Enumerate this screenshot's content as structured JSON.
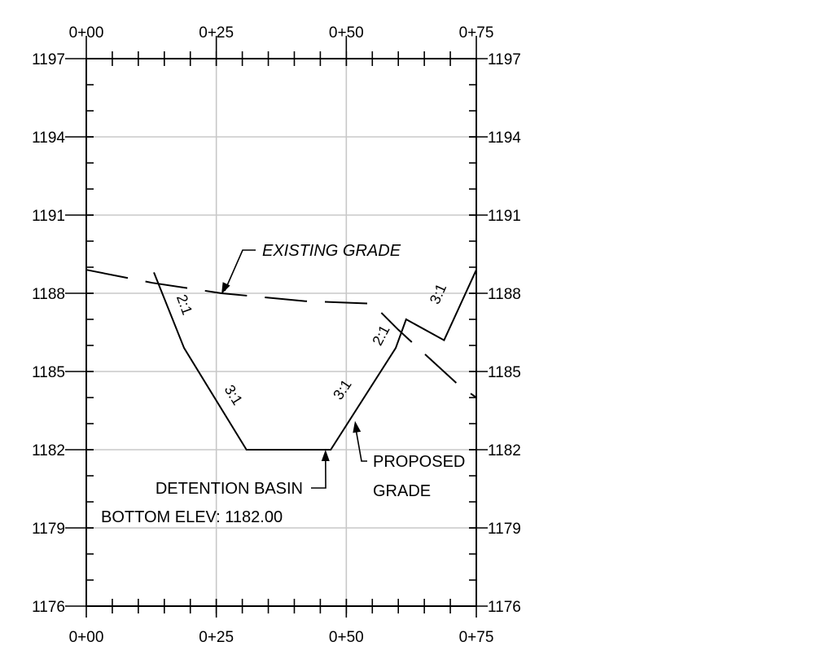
{
  "chart_data": {
    "type": "line",
    "x_tick_labels": [
      "0+00",
      "0+25",
      "0+50",
      "0+75"
    ],
    "x_ticks": [
      0,
      25,
      50,
      75
    ],
    "y_tick_labels": [
      "1197",
      "1194",
      "1191",
      "1188",
      "1185",
      "1182",
      "1179",
      "1176"
    ],
    "y_ticks": [
      1197,
      1194,
      1191,
      1188,
      1185,
      1182,
      1179,
      1176
    ],
    "xlim": [
      0,
      75
    ],
    "ylim": [
      1176,
      1197
    ],
    "grid": true,
    "series": [
      {
        "name": "EXISTING GRADE",
        "style": "dashed",
        "points": [
          [
            0,
            1188.9
          ],
          [
            12.7,
            1188.4
          ],
          [
            26,
            1188.0
          ],
          [
            42,
            1187.7
          ],
          [
            55,
            1187.6
          ],
          [
            60,
            1186.6
          ],
          [
            71.5,
            1184.5
          ],
          [
            75,
            1184.0
          ]
        ]
      },
      {
        "name": "PROPOSED GRADE",
        "style": "solid",
        "points": [
          [
            13,
            1188.8
          ],
          [
            18.8,
            1185.9
          ],
          [
            30.8,
            1182.0
          ],
          [
            47,
            1182.0
          ],
          [
            59.5,
            1185.9
          ],
          [
            61.5,
            1187.0
          ],
          [
            68.8,
            1186.2
          ],
          [
            75,
            1188.9
          ]
        ]
      }
    ],
    "annotations": [
      {
        "text": "EXISTING GRADE",
        "x": 26,
        "y": 1188.0,
        "leader": true
      },
      {
        "text": "PROPOSED",
        "x": 51.2,
        "y": 1183.1,
        "leader": true
      },
      {
        "text": "GRADE",
        "x": 51.2,
        "y": 1183.1,
        "leader": false
      },
      {
        "text": "DETENTION BASIN",
        "x": 46,
        "y": 1182.0,
        "leader": true
      },
      {
        "text": "BOTTOM ELEV: 1182.00",
        "x": 46,
        "y": 1182.0,
        "leader": false
      }
    ],
    "slope_labels": [
      {
        "text": "2:1",
        "x": 18,
        "y": 1187.5
      },
      {
        "text": "3:1",
        "x": 27.5,
        "y": 1184.0
      },
      {
        "text": "3:1",
        "x": 50,
        "y": 1184.2
      },
      {
        "text": "2:1",
        "x": 57.5,
        "y": 1186.3
      },
      {
        "text": "3:1",
        "x": 68.5,
        "y": 1187.9
      }
    ]
  }
}
